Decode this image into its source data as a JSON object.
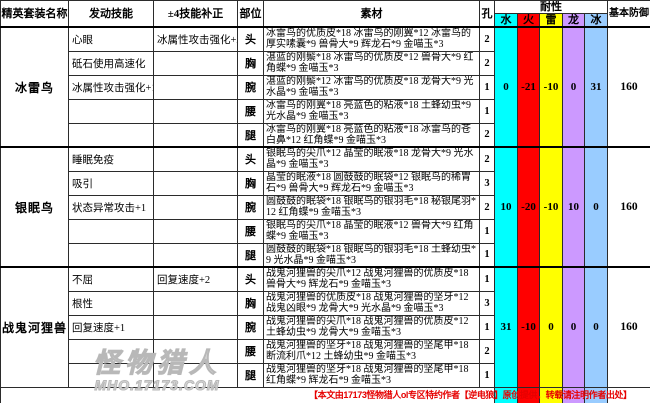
{
  "header": {
    "set_name": "精英套装名称",
    "skill": "发动技能",
    "bonus": "±4技能补正",
    "part": "部位",
    "materials": "素材",
    "slots": "孔",
    "resist": "耐性",
    "defense": "基本防御",
    "resist_cols": {
      "water": "水",
      "fire": "火",
      "thunder": "雷",
      "dragon": "龙",
      "ice": "冰"
    }
  },
  "colors": {
    "water": "#00ffff",
    "fire": "#ff0000",
    "thunder": "#ffff00",
    "dragon": "#cc99ff",
    "ice": "#99ccff",
    "note": "#e60000"
  },
  "sets": [
    {
      "name": "冰雷鸟",
      "rows": [
        {
          "skill": "心眼",
          "bonus": "冰属性攻击强化+2",
          "part": "头",
          "materials": "冰雷鸟的优质皮*18 冰雷鸟的刚翼*12 冰雷鸟的厚实嗉囊*9 兽骨大*9 辉龙石*9 金喵玉*3",
          "slots": "2"
        },
        {
          "skill": "砥石使用高速化",
          "bonus": "",
          "part": "胸",
          "materials": "湛蓝的刚鬃*18 冰雷鸟的优质皮*12 兽骨大*9 红角蝶*9 金喵玉*3",
          "slots": "2"
        },
        {
          "skill": "冰属性攻击强化+1",
          "bonus": "",
          "part": "腕",
          "materials": "湛蓝的刚鬃*12 冰雷鸟的优质皮*18 龙骨大*9 光水晶*9 金喵玉*3",
          "slots": "1"
        },
        {
          "skill": "",
          "bonus": "",
          "part": "腰",
          "materials": "冰雷鸟的刚翼*18 亮蓝色的粘液*18 土蜂幼虫*9 光水晶*9 金喵玉*3",
          "slots": "1"
        },
        {
          "skill": "",
          "bonus": "",
          "part": "腿",
          "materials": "冰雷鸟的刚翼*18 亮蓝色的粘液*18 冰雷鸟的苍白鼻*12 红角蝶*9 金喵玉*3",
          "slots": "2"
        }
      ],
      "resists": {
        "water": "0",
        "fire": "-21",
        "thunder": "-10",
        "dragon": "0",
        "ice": "31"
      },
      "defense": "160"
    },
    {
      "name": "银眠鸟",
      "rows": [
        {
          "skill": "睡眠免疫",
          "bonus": "",
          "part": "头",
          "materials": "银眠鸟的尖爪*12 晶莹的眠液*18 龙骨大*9 光水晶*9 金喵玉*3",
          "slots": "2"
        },
        {
          "skill": "吸引",
          "bonus": "",
          "part": "胸",
          "materials": "晶莹的眠液*18 圆鼓鼓的眠袋*12 银眠鸟的稀胃石*9 兽骨大*9 辉龙石*9 金喵玉*3",
          "slots": "3"
        },
        {
          "skill": "状态异常攻击+1",
          "bonus": "",
          "part": "腕",
          "materials": "圆鼓鼓的眠袋*18 银眠鸟的银羽毛*18 秘银尾羽*12 红角蝶*9 金喵玉*3",
          "slots": "2"
        },
        {
          "skill": "",
          "bonus": "",
          "part": "腰",
          "materials": "银眠鸟的尖爪*18 晶莹的眠液*12 兽骨大*9 红角蝶*9 金喵玉*3",
          "slots": "1"
        },
        {
          "skill": "",
          "bonus": "",
          "part": "腿",
          "materials": "圆鼓鼓的眠袋*18 银眠鸟的银羽毛*18 土蜂幼虫*9 光水晶*9 金喵玉*3",
          "slots": "1"
        }
      ],
      "resists": {
        "water": "10",
        "fire": "-20",
        "thunder": "-10",
        "dragon": "10",
        "ice": "0"
      },
      "defense": "160"
    },
    {
      "name": "战鬼河狸兽",
      "rows": [
        {
          "skill": "不屈",
          "bonus": "回复速度+2",
          "part": "头",
          "materials": "战鬼河狸兽的尖爪*12 战鬼河狸兽的优质皮*18 兽骨大*9 辉龙石*9 金喵玉*3",
          "slots": "1"
        },
        {
          "skill": "根性",
          "bonus": "",
          "part": "胸",
          "materials": "战鬼河狸兽的优质皮*18 战鬼河狸兽的坚牙*12 战鬼凶眼*9 龙骨大*9 光水晶*9 金喵玉*3",
          "slots": "3"
        },
        {
          "skill": "回复速度+1",
          "bonus": "",
          "part": "腕",
          "materials": "战鬼河狸兽的尖爪*18 战鬼河狸兽的优质皮*12 土蜂幼虫*9 龙骨大*9 金喵玉*3",
          "slots": "1"
        },
        {
          "skill": "",
          "bonus": "",
          "part": "腰",
          "materials": "战鬼河狸兽的坚牙*18 战鬼河狸兽的坚尾甲*18 断流利爪*12 土蜂幼虫*9 金喵玉*3",
          "slots": "2"
        },
        {
          "skill": "",
          "bonus": "",
          "part": "腿",
          "materials": "战鬼河狸兽的坚牙*18 战鬼河狸兽的坚尾甲*18 红角蝶*9 辉龙石*9 金喵玉*3",
          "slots": "1"
        }
      ],
      "resists": {
        "water": "31",
        "fire": "-10",
        "thunder": "0",
        "dragon": "0",
        "ice": "0"
      },
      "defense": "160"
    }
  ],
  "watermark": {
    "line1": "怪物猎人",
    "line2": "MHO.17173.COM"
  },
  "footer_note": "【本文由17173怪物猎人ol专区特约作者【逆电狼】原创提供，转载请注明作者出处】"
}
